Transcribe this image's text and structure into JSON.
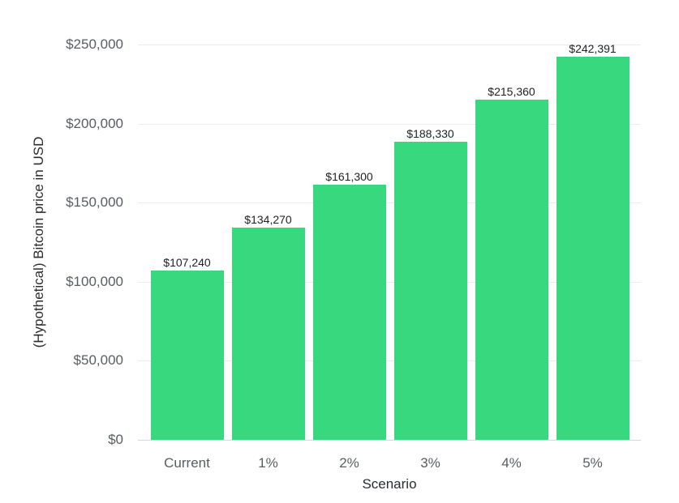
{
  "chart_data": {
    "type": "bar",
    "title": "",
    "categories": [
      "Current",
      "1%",
      "2%",
      "3%",
      "4%",
      "5%"
    ],
    "values": [
      107240,
      134270,
      161300,
      188330,
      215360,
      242391
    ],
    "bar_labels": [
      "$107,240",
      "$134,270",
      "$161,300",
      "$188,330",
      "$215,360",
      "$242,391"
    ],
    "xlabel": "Scenario",
    "ylabel": "(Hypothetical) Bitcoin price in USD",
    "ylim": [
      0,
      250000
    ],
    "ytick_values": [
      0,
      50000,
      100000,
      150000,
      200000,
      250000
    ],
    "ytick_labels": [
      "$0",
      "$50,000",
      "$100,000",
      "$150,000",
      "$200,000",
      "$250,000"
    ],
    "grid": true,
    "legend": false,
    "bar_color": "#38d87e"
  },
  "colors": {
    "background": "#ffffff",
    "bar": "#38d87e",
    "gridline": "#ebecec",
    "axis_line": "#d7d9da",
    "tick_text": "#595d62",
    "bar_label_text": "#1d1f22",
    "axis_title_text": "#292c2f"
  }
}
